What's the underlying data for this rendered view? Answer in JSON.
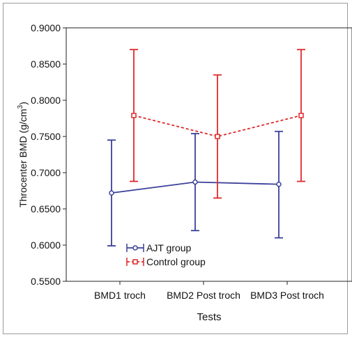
{
  "chart_data": {
    "type": "line",
    "xlabel": "Tests",
    "ylabel": "Throcenter BMD (g/cm",
    "ylabel_superscript": "3",
    "ylabel_suffix": ")",
    "categories": [
      "BMD1 troch",
      "BMD2 Post troch",
      "BMD3 Post troch"
    ],
    "ylim": [
      0.55,
      0.9
    ],
    "yticks": [
      "0.9000",
      "0.8500",
      "0.8000",
      "0.7500",
      "0.7000",
      "0.6500",
      "0.6000",
      "0.5500"
    ],
    "grid": false,
    "legend_position": "bottom-left",
    "series": [
      {
        "name": "AJT group",
        "color": "#3a3f9a",
        "line_style": "solid",
        "marker": "circle",
        "values": [
          0.672,
          0.687,
          0.684
        ],
        "error_low": [
          0.599,
          0.62,
          0.61
        ],
        "error_high": [
          0.745,
          0.754,
          0.757
        ]
      },
      {
        "name": "Control group",
        "color": "#e0282a",
        "line_style": "dashed",
        "marker": "square",
        "values": [
          0.779,
          0.75,
          0.779
        ],
        "error_low": [
          0.688,
          0.665,
          0.688
        ],
        "error_high": [
          0.87,
          0.835,
          0.87
        ]
      }
    ]
  }
}
